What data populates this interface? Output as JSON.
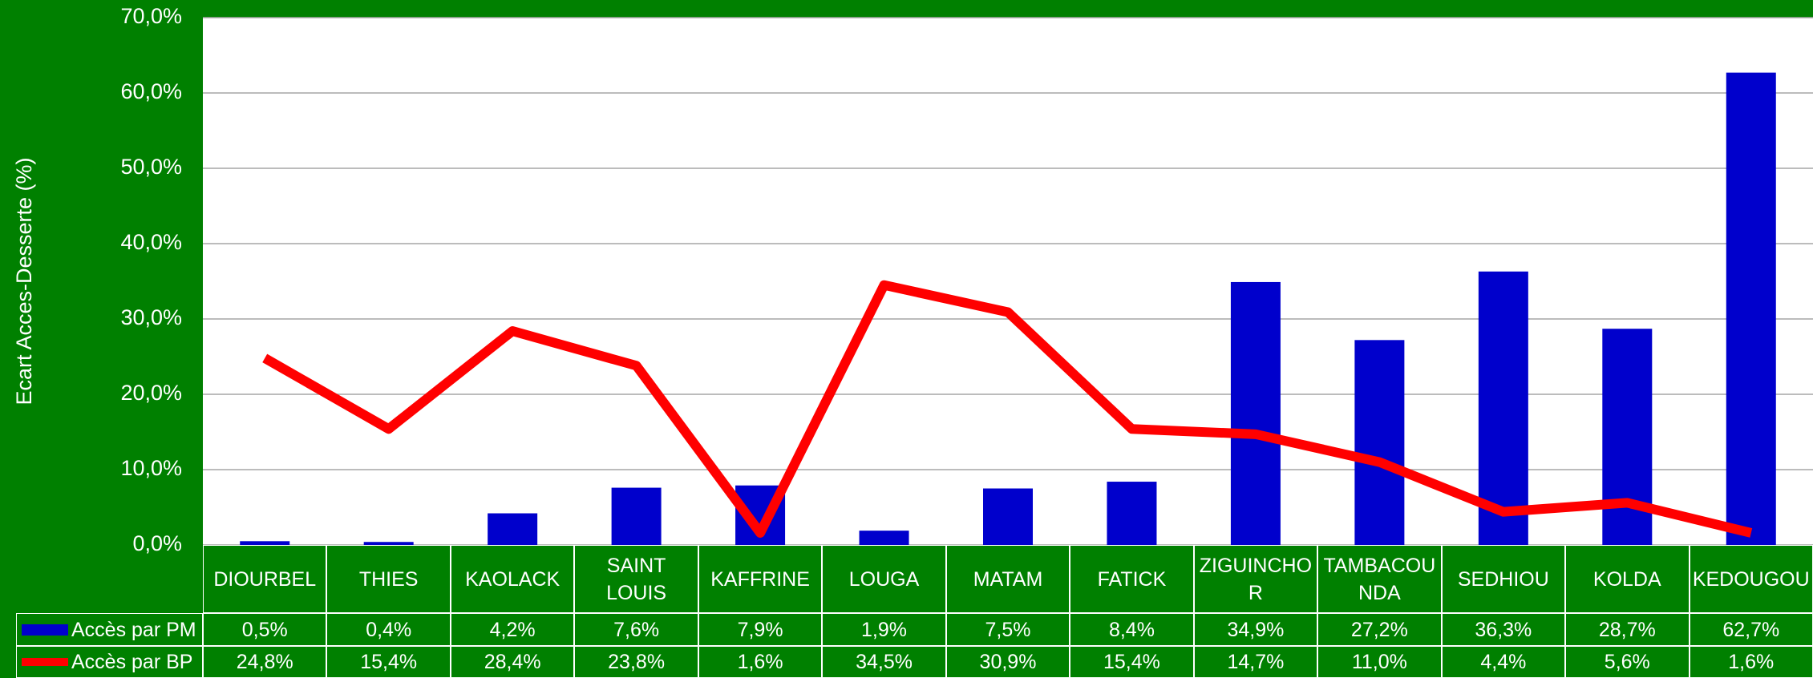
{
  "chart_data": {
    "type": "bar_line",
    "y_axis_label": "Ecart Acces-Desserte (%)",
    "categories": [
      "DIOURBEL",
      "THIES",
      "KAOLACK",
      "SAINT LOUIS",
      "KAFFRINE",
      "LOUGA",
      "MATAM",
      "FATICK",
      "ZIGUINCHOR",
      "TAMBACOUNDA",
      "SEDHIOU",
      "KOLDA",
      "KEDOUGOU"
    ],
    "series": [
      {
        "name": "Accès par PM",
        "type": "bar",
        "color": "#0000cc",
        "values": [
          0.5,
          0.4,
          4.2,
          7.6,
          7.9,
          1.9,
          7.5,
          8.4,
          34.9,
          27.2,
          36.3,
          28.7,
          62.7
        ],
        "value_labels": [
          "0,5%",
          "0,4%",
          "4,2%",
          "7,6%",
          "7,9%",
          "1,9%",
          "7,5%",
          "8,4%",
          "34,9%",
          "27,2%",
          "36,3%",
          "28,7%",
          "62,7%"
        ]
      },
      {
        "name": "Accès par BP",
        "type": "line",
        "color": "#ff0000",
        "values": [
          24.8,
          15.4,
          28.4,
          23.8,
          1.6,
          34.5,
          30.9,
          15.4,
          14.7,
          11.0,
          4.4,
          5.6,
          1.6
        ],
        "value_labels": [
          "24,8%",
          "15,4%",
          "28,4%",
          "23,8%",
          "1,6%",
          "34,5%",
          "30,9%",
          "15,4%",
          "14,7%",
          "11,0%",
          "4,4%",
          "5,6%",
          "1,6%"
        ]
      }
    ],
    "ylim": [
      0,
      70
    ],
    "yticks": [
      {
        "value": 0,
        "label": "0,0%"
      },
      {
        "value": 10,
        "label": "10,0%"
      },
      {
        "value": 20,
        "label": "20,0%"
      },
      {
        "value": 30,
        "label": "30,0%"
      },
      {
        "value": 40,
        "label": "40,0%"
      },
      {
        "value": 50,
        "label": "50,0%"
      },
      {
        "value": 60,
        "label": "60,0%"
      },
      {
        "value": 70,
        "label": "70,0%"
      }
    ],
    "grid": true
  }
}
